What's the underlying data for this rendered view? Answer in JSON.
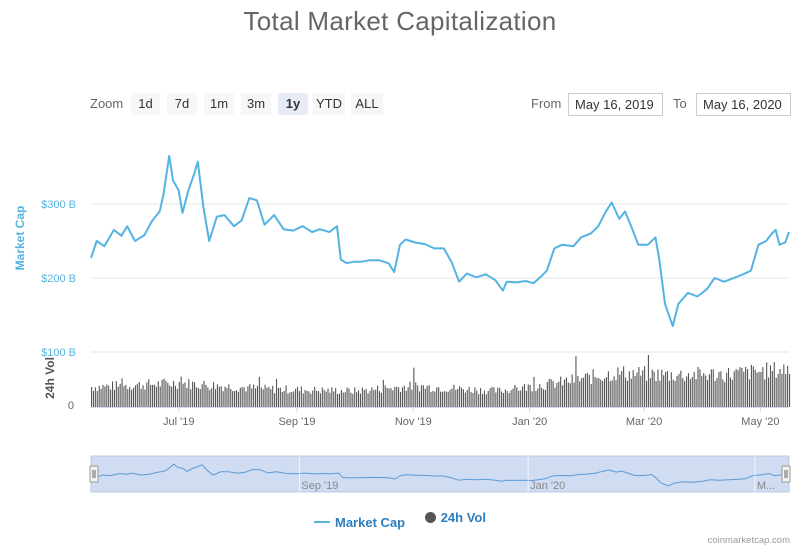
{
  "title": "Total Market Capitalization",
  "zoom": {
    "label": "Zoom",
    "buttons": [
      "1d",
      "7d",
      "1m",
      "3m",
      "1y",
      "YTD",
      "ALL"
    ],
    "active": "1y"
  },
  "range": {
    "from_label": "From",
    "from_value": "May 16, 2019",
    "to_label": "To",
    "to_value": "May 16, 2020"
  },
  "legend": {
    "market_cap": "Market Cap",
    "volume": "24h Vol"
  },
  "credit": "coinmarketcap.com",
  "colors": {
    "market_cap": "#54b3e3",
    "volume": "#555555",
    "navigator_fill": "#c8d6f0"
  },
  "chart_data": {
    "type": "line",
    "x_range": [
      "2019-05-16",
      "2020-05-16"
    ],
    "x_ticks": [
      "Jul '19",
      "Sep '19",
      "Nov '19",
      "Jan '20",
      "Mar '20",
      "May '20"
    ],
    "navigator_ticks": [
      "Sep '19",
      "Jan '20",
      "M..."
    ],
    "series": [
      {
        "name": "Market Cap",
        "axis_label": "Market Cap",
        "unit": "USD billions",
        "y_ticks": [
          "$100 B",
          "$200 B",
          "$300 B"
        ],
        "ylim": [
          100,
          370
        ],
        "points": [
          [
            "2019-05-16",
            227
          ],
          [
            "2019-05-19",
            250
          ],
          [
            "2019-05-23",
            243
          ],
          [
            "2019-05-28",
            265
          ],
          [
            "2019-06-01",
            257
          ],
          [
            "2019-06-04",
            270
          ],
          [
            "2019-06-08",
            250
          ],
          [
            "2019-06-13",
            258
          ],
          [
            "2019-06-17",
            277
          ],
          [
            "2019-06-21",
            290
          ],
          [
            "2019-06-23",
            313
          ],
          [
            "2019-06-26",
            365
          ],
          [
            "2019-06-28",
            332
          ],
          [
            "2019-07-01",
            318
          ],
          [
            "2019-07-03",
            288
          ],
          [
            "2019-07-06",
            318
          ],
          [
            "2019-07-09",
            340
          ],
          [
            "2019-07-11",
            357
          ],
          [
            "2019-07-14",
            295
          ],
          [
            "2019-07-17",
            250
          ],
          [
            "2019-07-21",
            283
          ],
          [
            "2019-07-25",
            285
          ],
          [
            "2019-07-30",
            270
          ],
          [
            "2019-08-03",
            278
          ],
          [
            "2019-08-07",
            308
          ],
          [
            "2019-08-11",
            305
          ],
          [
            "2019-08-15",
            272
          ],
          [
            "2019-08-20",
            285
          ],
          [
            "2019-08-25",
            266
          ],
          [
            "2019-08-30",
            264
          ],
          [
            "2019-09-04",
            270
          ],
          [
            "2019-09-09",
            262
          ],
          [
            "2019-09-13",
            266
          ],
          [
            "2019-09-18",
            262
          ],
          [
            "2019-09-22",
            270
          ],
          [
            "2019-09-24",
            225
          ],
          [
            "2019-09-27",
            220
          ],
          [
            "2019-10-01",
            222
          ],
          [
            "2019-10-05",
            222
          ],
          [
            "2019-10-09",
            224
          ],
          [
            "2019-10-14",
            224
          ],
          [
            "2019-10-19",
            220
          ],
          [
            "2019-10-22",
            208
          ],
          [
            "2019-10-25",
            245
          ],
          [
            "2019-10-28",
            252
          ],
          [
            "2019-11-02",
            248
          ],
          [
            "2019-11-07",
            246
          ],
          [
            "2019-11-12",
            240
          ],
          [
            "2019-11-17",
            240
          ],
          [
            "2019-11-21",
            222
          ],
          [
            "2019-11-25",
            195
          ],
          [
            "2019-11-29",
            206
          ],
          [
            "2019-12-04",
            201
          ],
          [
            "2019-12-09",
            205
          ],
          [
            "2019-12-14",
            197
          ],
          [
            "2019-12-18",
            183
          ],
          [
            "2019-12-20",
            195
          ],
          [
            "2019-12-25",
            194
          ],
          [
            "2019-12-30",
            196
          ],
          [
            "2020-01-03",
            193
          ],
          [
            "2020-01-07",
            202
          ],
          [
            "2020-01-10",
            210
          ],
          [
            "2020-01-14",
            240
          ],
          [
            "2020-01-18",
            245
          ],
          [
            "2020-01-24",
            243
          ],
          [
            "2020-01-28",
            255
          ],
          [
            "2020-02-02",
            260
          ],
          [
            "2020-02-06",
            270
          ],
          [
            "2020-02-10",
            290
          ],
          [
            "2020-02-13",
            302
          ],
          [
            "2020-02-17",
            280
          ],
          [
            "2020-02-20",
            290
          ],
          [
            "2020-02-24",
            265
          ],
          [
            "2020-02-27",
            245
          ],
          [
            "2020-03-03",
            245
          ],
          [
            "2020-03-07",
            255
          ],
          [
            "2020-03-09",
            225
          ],
          [
            "2020-03-12",
            165
          ],
          [
            "2020-03-16",
            135
          ],
          [
            "2020-03-19",
            165
          ],
          [
            "2020-03-24",
            180
          ],
          [
            "2020-03-29",
            175
          ],
          [
            "2020-04-03",
            185
          ],
          [
            "2020-04-07",
            200
          ],
          [
            "2020-04-12",
            195
          ],
          [
            "2020-04-17",
            200
          ],
          [
            "2020-04-22",
            205
          ],
          [
            "2020-04-26",
            210
          ],
          [
            "2020-04-30",
            245
          ],
          [
            "2020-05-04",
            250
          ],
          [
            "2020-05-07",
            260
          ],
          [
            "2020-05-09",
            265
          ],
          [
            "2020-05-11",
            245
          ],
          [
            "2020-05-14",
            248
          ],
          [
            "2020-05-16",
            262
          ]
        ]
      },
      {
        "name": "24h Vol",
        "axis_label": "24h Vol",
        "y_ticks": [
          "0"
        ],
        "seed_levels": [
          [
            "2019-05-16",
            20
          ],
          [
            "2019-07-01",
            24
          ],
          [
            "2019-08-15",
            18
          ],
          [
            "2019-10-01",
            16
          ],
          [
            "2019-11-01",
            21
          ],
          [
            "2019-12-15",
            16
          ],
          [
            "2020-01-15",
            24
          ],
          [
            "2020-02-15",
            34
          ],
          [
            "2020-03-15",
            32
          ],
          [
            "2020-04-15",
            33
          ],
          [
            "2020-05-16",
            38
          ]
        ]
      }
    ]
  }
}
